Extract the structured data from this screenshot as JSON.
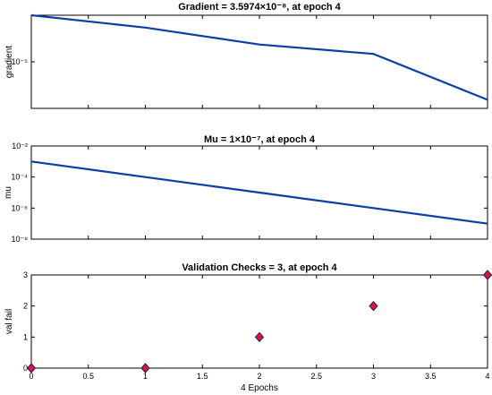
{
  "chart_data": [
    {
      "type": "line",
      "title": "Gradient = 3.5974×10⁻⁸, at epoch 4",
      "ylabel": "gradient",
      "yscale": "log",
      "ylim": [
        1e-08,
        0.01
      ],
      "xlim": [
        0,
        4
      ],
      "yticks": [
        {
          "value": 1e-05,
          "label": "10⁻⁵"
        }
      ],
      "x": [
        0,
        1,
        2,
        3,
        4
      ],
      "y": [
        0.01,
        0.0016,
        0.00013,
        3.2e-05,
        3.5974e-08
      ],
      "color": "#0b3fa5"
    },
    {
      "type": "line",
      "title": "Mu = 1×10⁻⁷, at epoch 4",
      "ylabel": "mu",
      "yscale": "log",
      "ylim": [
        1e-08,
        0.01
      ],
      "xlim": [
        0,
        4
      ],
      "yticks": [
        {
          "value": 0.01,
          "label": "10⁻²"
        },
        {
          "value": 0.0001,
          "label": "10⁻⁴"
        },
        {
          "value": 1e-06,
          "label": "10⁻⁶"
        },
        {
          "value": 1e-08,
          "label": "10⁻⁸"
        }
      ],
      "x": [
        0,
        1,
        2,
        3,
        4
      ],
      "y": [
        0.001,
        0.0001,
        1e-05,
        1e-06,
        1e-07
      ],
      "color": "#0b3fa5"
    },
    {
      "type": "scatter",
      "title": "Validation Checks = 3, at epoch 4",
      "ylabel": "val fail",
      "xlabel": "4 Epochs",
      "ylim": [
        0,
        3
      ],
      "xlim": [
        0,
        4
      ],
      "yticks": [
        {
          "value": 0,
          "label": "0"
        },
        {
          "value": 1,
          "label": "1"
        },
        {
          "value": 2,
          "label": "2"
        },
        {
          "value": 3,
          "label": "3"
        }
      ],
      "xticks": [
        {
          "value": 0,
          "label": "0"
        },
        {
          "value": 0.5,
          "label": "0.5"
        },
        {
          "value": 1,
          "label": "1"
        },
        {
          "value": 1.5,
          "label": "1.5"
        },
        {
          "value": 2,
          "label": "2"
        },
        {
          "value": 2.5,
          "label": "2.5"
        },
        {
          "value": 3,
          "label": "3"
        },
        {
          "value": 3.5,
          "label": "3.5"
        },
        {
          "value": 4,
          "label": "4"
        }
      ],
      "x": [
        0,
        1,
        2,
        3,
        4
      ],
      "y": [
        0,
        0,
        1,
        2,
        3
      ],
      "marker": "diamond",
      "marker_color": "#e0142c"
    }
  ]
}
